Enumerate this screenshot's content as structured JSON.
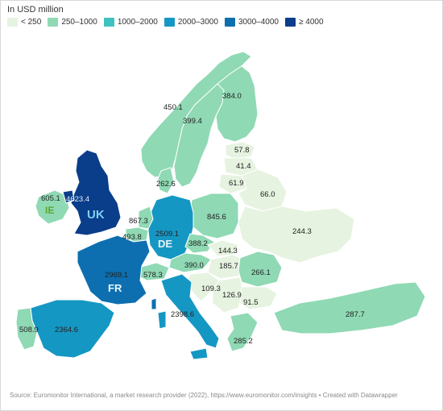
{
  "header": {
    "subtitle": "In USD million"
  },
  "legend": [
    {
      "label": "< 250",
      "color": "#e6f3e0"
    },
    {
      "label": "250–1000",
      "color": "#8fd9b4"
    },
    {
      "label": "1000–2000",
      "color": "#3fc1c0"
    },
    {
      "label": "2000–3000",
      "color": "#1597c4"
    },
    {
      "label": "3000–4000",
      "color": "#0d6fb0"
    },
    {
      "label": "≥ 4000",
      "color": "#0a3d8a"
    }
  ],
  "labels": {
    "uk_value": "4623.4",
    "ie_value": "605.1",
    "fr_value": "2969.1",
    "de_value": "2509.1",
    "es_value": "2364.6",
    "pt_value": "508.9",
    "it_value": "2398.6",
    "ch_value": "578.3",
    "at_value": "390.0",
    "cz_value": "388.2",
    "pl_value": "845.6",
    "nl_value": "867.3",
    "be_value": "493.8",
    "dk_value": "262.6",
    "no_value": "450.1",
    "se_value": "399.4",
    "fi_value": "384.0",
    "ee_value": "57.8",
    "lv_value": "41.4",
    "lt_value": "61.9",
    "by_value": "66.0",
    "ua_value": "244.3",
    "sk_value": "144.3",
    "hu_value": "185.7",
    "ro_value": "266.1",
    "hr_value": "109.3",
    "rs_value": "126.9",
    "bg_value": "91.5",
    "tr_value": "287.7",
    "gr_value": "285.2",
    "uk_code": "UK",
    "ie_code": "IE",
    "fr_code": "FR",
    "de_code": "DE"
  },
  "footer": {
    "source": "Source: Euromonitor International, a market research provider (2022), https://www.euromonitor.com/insights • Created with Datawrapper"
  }
}
